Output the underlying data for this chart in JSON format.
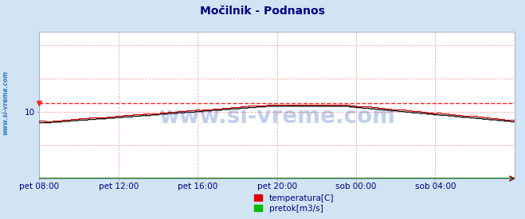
{
  "title": "Močilnik - Podnanos",
  "title_color": "#000080",
  "title_fontsize": 10,
  "bg_color": "#d0e4f4",
  "plot_bg_color": "#ffffff",
  "grid_color": "#ffaaaa",
  "x_labels": [
    "pet 08:00",
    "pet 12:00",
    "pet 16:00",
    "pet 20:00",
    "sob 00:00",
    "sob 04:00"
  ],
  "x_label_color": "#000080",
  "y_label_color": "#000080",
  "ylim": [
    0,
    22
  ],
  "xlim": [
    0,
    288
  ],
  "x_tick_positions": [
    0,
    48,
    96,
    144,
    192,
    240
  ],
  "ytick_val": 10,
  "ytick_pos": 10,
  "watermark": "www.si-vreme.com",
  "watermark_color": "#2255bb",
  "legend_labels": [
    "temperatura[C]",
    "pretok[m3/s]"
  ],
  "legend_colors": [
    "#dd0000",
    "#00bb00"
  ],
  "temp_color": "#cc0000",
  "flow_color": "#007700",
  "black_color": "#111111",
  "dashed_line_value": 11.3,
  "dashed_line_color": "#ff2222",
  "sidebar_text": "www.si-vreme.com",
  "sidebar_color": "#3377bb",
  "arrow_color": "#880000",
  "spine_color": "#aaaacc",
  "temp_start": 8.6,
  "temp_peak": 11.1,
  "temp_end": 8.7,
  "temp_rise_end": 140,
  "temp_plateau_end": 185,
  "n_points": 289
}
